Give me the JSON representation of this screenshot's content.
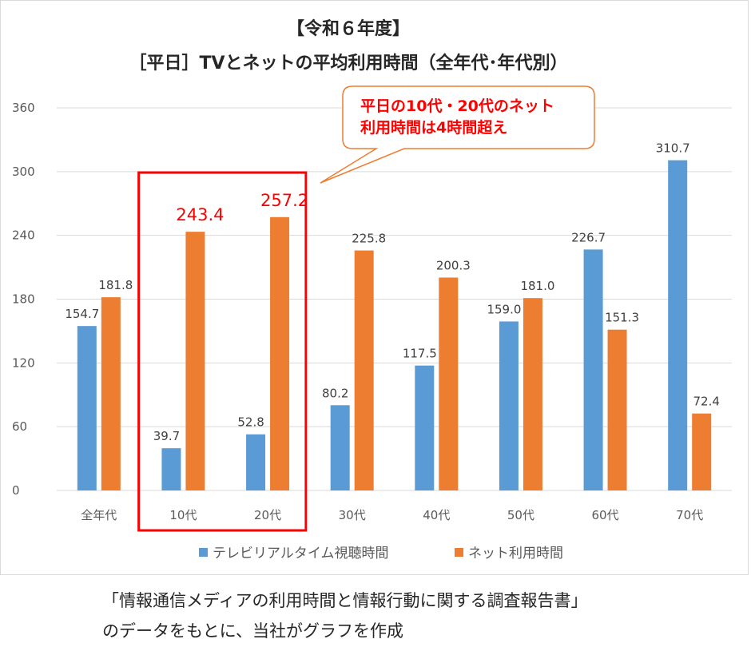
{
  "chart_data": {
    "type": "bar",
    "title": "【令和６年度】",
    "subtitle": "［平日］TVとネットの平均利用時間（全年代･年代別）",
    "categories": [
      "全年代",
      "10代",
      "20代",
      "30代",
      "40代",
      "50代",
      "60代",
      "70代"
    ],
    "series": [
      {
        "name": "テレビリアルタイム視聴時間",
        "color": "#5b9bd5",
        "values": [
          154.7,
          39.7,
          52.8,
          80.2,
          117.5,
          159.0,
          226.7,
          310.7
        ],
        "labels": [
          "154.7",
          "39.7",
          "52.8",
          "80.2",
          "117.5",
          "159.0",
          "226.7",
          "310.7"
        ]
      },
      {
        "name": "ネット利用時間",
        "color": "#ed7d31",
        "values": [
          181.8,
          243.4,
          257.2,
          225.8,
          200.3,
          181.0,
          151.3,
          72.4
        ],
        "labels": [
          "181.8",
          "243.4",
          "257.2",
          "225.8",
          "200.3",
          "181.0",
          "151.3",
          "72.4"
        ]
      }
    ],
    "ylim": [
      0,
      360
    ],
    "yticks": [
      "0",
      "60",
      "120",
      "180",
      "240",
      "300",
      "360"
    ],
    "grid": true,
    "legend": "bottom",
    "highlight": {
      "categories": [
        "10代",
        "20代"
      ],
      "color": "#ff0000",
      "callout": [
        "平日の10代・20代のネット",
        "利用時間は4時間超え"
      ]
    }
  },
  "source_note": [
    "「情報通信メディアの利用時間と情報行動に関する調査報告書」",
    "のデータをもとに、当社がグラフを作成"
  ],
  "colors": {
    "tv": "#5b9bd5",
    "net": "#ed7d31",
    "highlight": "#ff0000",
    "grid": "#d9d9d9"
  }
}
